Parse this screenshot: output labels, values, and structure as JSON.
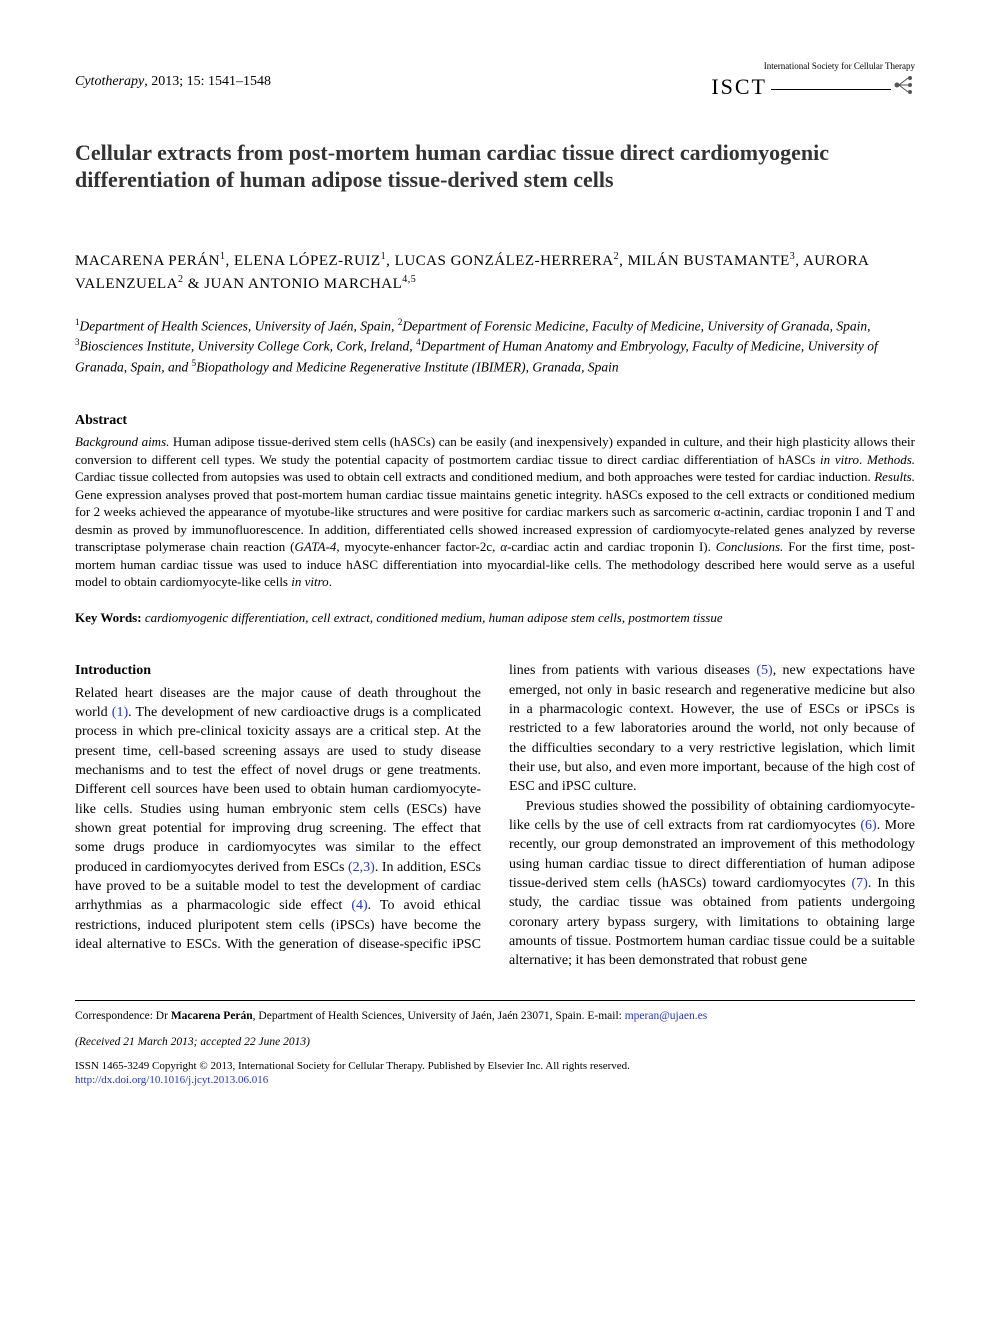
{
  "header": {
    "journal": "Cytotherapy",
    "year_vol_pages": ", 2013; 15: 1541–1548",
    "society_line": "International Society for Cellular Therapy",
    "isct": "ISCT"
  },
  "title": "Cellular extracts from post-mortem human cardiac tissue direct cardiomyogenic differentiation of human adipose tissue-derived stem cells",
  "authors_html": "MACARENA PERÁN<sup>1</sup>, ELENA LÓPEZ-RUIZ<sup>1</sup>, LUCAS GONZÁLEZ-HERRERA<sup>2</sup>, MILÁN BUSTAMANTE<sup>3</sup>, AURORA VALENZUELA<sup>2</sup> & JUAN ANTONIO MARCHAL<sup>4,5</sup>",
  "affiliations_html": "<sup>1</sup>Department of Health Sciences, University of Jaén, Spain, <sup>2</sup>Department of Forensic Medicine, Faculty of Medicine, University of Granada, Spain, <sup>3</sup>Biosciences Institute, University College Cork, Cork, Ireland, <sup>4</sup>Department of Human Anatomy and Embryology, Faculty of Medicine, University of Granada, Spain, and <sup>5</sup>Biopathology and Medicine Regenerative Institute (IBIMER), Granada, Spain",
  "abstract": {
    "header": "Abstract",
    "body_html": "<span class=\"run-in\">Background aims.</span> Human adipose tissue-derived stem cells (hASCs) can be easily (and inexpensively) expanded in culture, and their high plasticity allows their conversion to different cell types. We study the potential capacity of postmortem cardiac tissue to direct cardiac differentiation of hASCs <i>in vitro</i>. <span class=\"run-in\">Methods.</span> Cardiac tissue collected from autopsies was used to obtain cell extracts and conditioned medium, and both approaches were tested for cardiac induction. <span class=\"run-in\">Results.</span> Gene expression analyses proved that post-mortem human cardiac tissue maintains genetic integrity. hASCs exposed to the cell extracts or conditioned medium for 2 weeks achieved the appearance of myotube-like structures and were positive for cardiac markers such as sarcomeric α-actinin, cardiac troponin I and T and desmin as proved by immunofluorescence. In addition, differentiated cells showed increased expression of cardiomyocyte-related genes analyzed by reverse transcriptase polymerase chain reaction (<i>GATA-4</i>, myocyte-enhancer factor-2c, <i>α</i>-cardiac actin and cardiac troponin I). <span class=\"run-in\">Conclusions.</span> For the first time, post-mortem human cardiac tissue was used to induce hASC differentiation into myocardial-like cells. The methodology described here would serve as a useful model to obtain cardiomyocyte-like cells <i>in vitro</i>."
  },
  "keywords": {
    "label": "Key Words:",
    "list": "cardiomyogenic differentiation, cell extract, conditioned medium, human adipose stem cells, postmortem tissue"
  },
  "intro": {
    "header": "Introduction",
    "p1_html": "Related heart diseases are the major cause of death throughout the world <span class=\"ref-link\">(1)</span>. The development of new cardioactive drugs is a complicated process in which pre-clinical toxicity assays are a critical step. At the present time, cell-based screening assays are used to study disease mechanisms and to test the effect of novel drugs or gene treatments. Different cell sources have been used to obtain human cardiomyocyte-like cells. Studies using human embryonic stem cells (ESCs) have shown great potential for improving drug screening. The effect that some drugs produce in cardiomyocytes was similar to the effect produced in cardiomyocytes derived from ESCs <span class=\"ref-link\">(2,3)</span>. In addition, ESCs have proved to be a suitable model to test the development of cardiac arrhythmias as a pharmacologic side effect <span class=\"ref-link\">(4)</span>. To avoid ethical restrictions, induced pluripotent stem cells (iPSCs) have become the ideal alternative to ESCs. With the generation of disease-specific iPSC lines from patients with various diseases <span class=\"ref-link\">(5)</span>, new expectations have emerged, not only in basic research and regenerative medicine but also in a pharmacologic context. However, the use of ESCs or iPSCs is restricted to a few laboratories around the world, not only because of the difficulties secondary to a very restrictive legislation, which limit their use, but also, and even more important, because of the high cost of ESC and iPSC culture.",
    "p2_html": "Previous studies showed the possibility of obtaining cardiomyocyte-like cells by the use of cell extracts from rat cardiomyocytes <span class=\"ref-link\">(6)</span>. More recently, our group demonstrated an improvement of this methodology using human cardiac tissue to direct differentiation of human adipose tissue-derived stem cells (hASCs) toward cardiomyocytes <span class=\"ref-link\">(7)</span>. In this study, the cardiac tissue was obtained from patients undergoing coronary artery bypass surgery, with limitations to obtaining large amounts of tissue. Postmortem human cardiac tissue could be a suitable alternative; it has been demonstrated that robust gene"
  },
  "footer": {
    "correspondence_html": "Correspondence: Dr <b>Macarena Perán</b>, Department of Health Sciences, University of Jaén, Jaén 23071, Spain. E-mail: <a>mperan@ujaen.es</a>",
    "received": "(Received 21 March 2013; accepted 22 June 2013)",
    "issn_html": "ISSN 1465-3249 Copyright © 2013, International Society for Cellular Therapy. Published by Elsevier Inc. All rights reserved.<br><a>http://dx.doi.org/10.1016/j.jcyt.2013.06.016</a>"
  },
  "colors": {
    "text": "#000000",
    "link": "#2233cc",
    "background": "#ffffff"
  }
}
